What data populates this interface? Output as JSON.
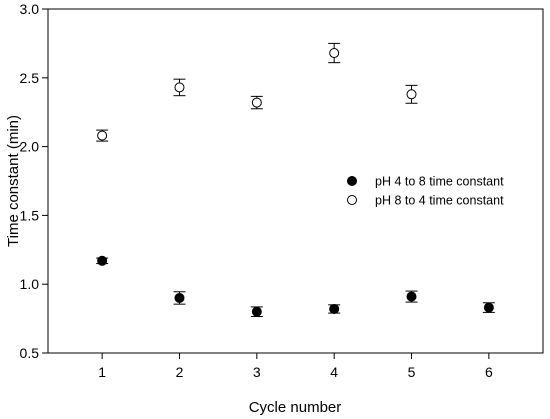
{
  "chart_data": {
    "type": "scatter",
    "title": "",
    "xlabel": "Cycle number",
    "ylabel": "Time constant (min)",
    "xlim": [
      0.3,
      6.7
    ],
    "ylim": [
      0.5,
      3.0
    ],
    "x_ticks": [
      1,
      2,
      3,
      4,
      5,
      6
    ],
    "x_tick_labels": [
      "1",
      "2",
      "3",
      "4",
      "5",
      "6"
    ],
    "y_ticks": [
      0.5,
      1.0,
      1.5,
      2.0,
      2.5,
      3.0
    ],
    "y_tick_labels": [
      "0.5",
      "1.0",
      "1.5",
      "2.0",
      "2.5",
      "3.0"
    ],
    "grid": false,
    "legend_position": "right",
    "series": [
      {
        "name": "pH 4 to 8 time constant",
        "marker": "filled-circle",
        "color": "#000000",
        "x": [
          1,
          2,
          3,
          4,
          5,
          6
        ],
        "y": [
          1.17,
          0.9,
          0.8,
          0.82,
          0.91,
          0.83
        ],
        "error": [
          0.02,
          0.045,
          0.035,
          0.03,
          0.04,
          0.035
        ]
      },
      {
        "name": "pH 8 to 4 time constant",
        "marker": "open-circle",
        "color": "#000000",
        "x": [
          1,
          2,
          3,
          4,
          5
        ],
        "y": [
          2.08,
          2.43,
          2.32,
          2.68,
          2.38
        ],
        "error": [
          0.04,
          0.06,
          0.045,
          0.07,
          0.065
        ]
      }
    ]
  }
}
